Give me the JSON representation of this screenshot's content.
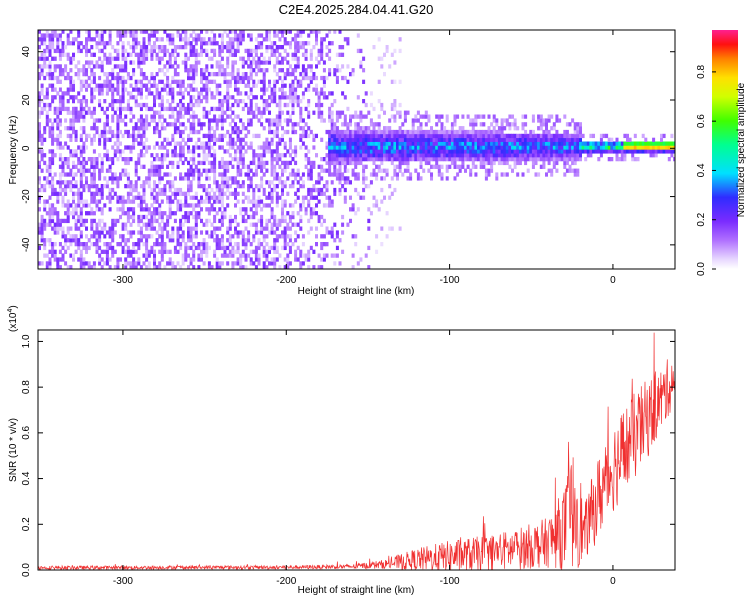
{
  "title": "C2E4.2025.284.04.41.G20",
  "chart_data": [
    {
      "type": "heatmap",
      "name": "spectrogram",
      "xlabel": "Height of straight line (km)",
      "ylabel": "Frequency (Hz)",
      "xlim": [
        -352,
        38
      ],
      "ylim": [
        -50,
        49
      ],
      "xticks": [
        -300,
        -200,
        -100,
        0
      ],
      "yticks": [
        -40,
        -20,
        0,
        20,
        40
      ],
      "colorbar": {
        "label": "Normalized spectral amplitude",
        "range": [
          0,
          0.97
        ],
        "ticks": [
          0.0,
          0.2,
          0.4,
          0.6,
          0.8
        ]
      },
      "features": {
        "broadband_noise_until_km": -150,
        "signal_start_km": -175,
        "signal_center_hz": 0,
        "signal_peak_region_km": [
          -20,
          38
        ]
      }
    },
    {
      "type": "line",
      "name": "snr",
      "xlabel": "Height of straight line (km)",
      "ylabel": "SNR (10 * v/v)",
      "scale_label": "(x10",
      "scale_exponent": "4",
      "scale_close": ")",
      "xlim": [
        -352,
        38
      ],
      "ylim": [
        0,
        1.05
      ],
      "xticks": [
        -300,
        -200,
        -100,
        0
      ],
      "yticks": [
        0.0,
        0.2,
        0.4,
        0.6,
        0.8,
        1.0
      ],
      "color": "#f03030",
      "envelope": {
        "x": [
          -352,
          -200,
          -160,
          -140,
          -120,
          -100,
          -80,
          -60,
          -40,
          -30,
          -22,
          -18,
          -10,
          0,
          10,
          20,
          30,
          38
        ],
        "mid": [
          0.01,
          0.012,
          0.015,
          0.025,
          0.045,
          0.06,
          0.07,
          0.09,
          0.12,
          0.18,
          0.3,
          0.15,
          0.3,
          0.45,
          0.55,
          0.65,
          0.75,
          0.85
        ],
        "amp": [
          0.008,
          0.008,
          0.01,
          0.02,
          0.05,
          0.07,
          0.08,
          0.09,
          0.11,
          0.18,
          0.3,
          0.12,
          0.18,
          0.2,
          0.2,
          0.18,
          0.14,
          0.12
        ]
      }
    }
  ]
}
